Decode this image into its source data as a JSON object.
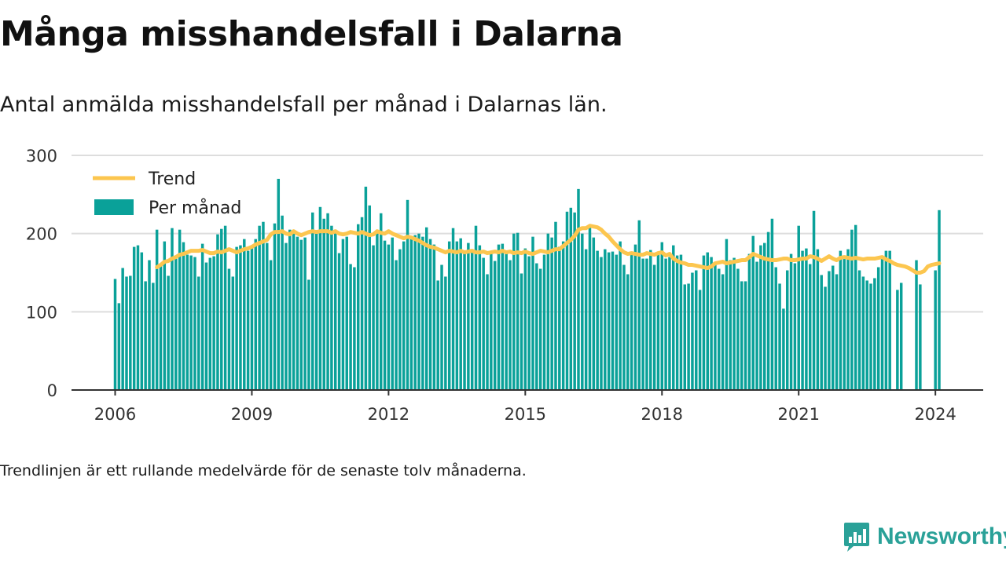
{
  "header": {
    "title": "Många misshandelsfall i Dalarna",
    "subtitle": "Antal anmälda misshandelsfall per månad i Dalarnas län."
  },
  "footer": {
    "note": "Trendlinjen är ett rullande medelvärde för de senaste tolv månaderna."
  },
  "logo": {
    "name": "Newsworthy",
    "icon": "newsworthy-chart-icon"
  },
  "colors": {
    "bar": "#0aa199",
    "trend": "#fcc64f",
    "grid": "#dddddd",
    "axis": "#333333"
  },
  "chart_data": {
    "type": "bar",
    "title": "Många misshandelsfall i Dalarna",
    "subtitle": "Antal anmälda misshandelsfall per månad i Dalarnas län.",
    "xlabel": "",
    "ylabel": "",
    "ylim": [
      0,
      300
    ],
    "yticks": [
      0,
      100,
      200,
      300
    ],
    "xticks": [
      "2006",
      "2009",
      "2012",
      "2015",
      "2018",
      "2021",
      "2024"
    ],
    "start": "2006-01",
    "grid": true,
    "legend_position": "top-left",
    "series": [
      {
        "name": "Per månad",
        "type": "bar",
        "values": [
          142,
          111,
          156,
          145,
          146,
          183,
          185,
          176,
          139,
          166,
          137,
          205,
          161,
          190,
          146,
          207,
          168,
          205,
          189,
          173,
          172,
          170,
          145,
          187,
          163,
          169,
          171,
          199,
          206,
          210,
          155,
          145,
          183,
          185,
          193,
          178,
          183,
          193,
          210,
          215,
          188,
          166,
          213,
          270,
          223,
          188,
          205,
          200,
          196,
          192,
          195,
          141,
          227,
          200,
          234,
          219,
          226,
          210,
          205,
          175,
          193,
          196,
          161,
          157,
          212,
          221,
          260,
          236,
          185,
          200,
          226,
          191,
          186,
          195,
          166,
          180,
          190,
          243,
          197,
          198,
          200,
          196,
          208,
          193,
          186,
          140,
          160,
          145,
          190,
          207,
          190,
          194,
          176,
          188,
          176,
          210,
          185,
          169,
          148,
          178,
          165,
          186,
          187,
          176,
          166,
          200,
          201,
          149,
          181,
          171,
          196,
          162,
          155,
          173,
          200,
          195,
          215,
          183,
          190,
          228,
          233,
          227,
          257,
          200,
          180,
          209,
          195,
          178,
          170,
          180,
          176,
          177,
          173,
          190,
          160,
          148,
          175,
          186,
          217,
          168,
          168,
          179,
          160,
          175,
          189,
          168,
          170,
          185,
          172,
          173,
          135,
          136,
          150,
          153,
          128,
          172,
          176,
          170,
          160,
          155,
          148,
          193,
          166,
          169,
          155,
          139,
          139,
          174,
          197,
          164,
          185,
          188,
          202,
          219,
          157,
          136,
          104,
          153,
          174,
          162,
          210,
          178,
          181,
          161,
          229,
          180,
          147,
          132,
          152,
          159,
          148,
          178,
          170,
          180,
          205,
          211,
          153,
          145,
          140,
          136,
          143,
          157,
          168,
          178,
          178,
          null,
          128,
          137,
          null,
          null,
          null,
          166,
          135,
          null,
          null,
          null,
          153,
          230
        ]
      },
      {
        "name": "Trend",
        "type": "line",
        "values": [
          null,
          null,
          null,
          null,
          null,
          null,
          null,
          null,
          null,
          null,
          null,
          157,
          160,
          164,
          165,
          168,
          170,
          173,
          174,
          176,
          178,
          178,
          178,
          179,
          177,
          175,
          175,
          177,
          176,
          178,
          180,
          178,
          176,
          178,
          180,
          181,
          183,
          186,
          188,
          190,
          192,
          199,
          202,
          202,
          203,
          200,
          199,
          203,
          200,
          198,
          200,
          202,
          203,
          202,
          203,
          203,
          203,
          201,
          203,
          200,
          199,
          200,
          202,
          201,
          200,
          202,
          200,
          198,
          199,
          203,
          201,
          200,
          203,
          200,
          198,
          196,
          194,
          196,
          195,
          193,
          191,
          188,
          185,
          183,
          182,
          180,
          178,
          176,
          178,
          177,
          176,
          178,
          176,
          177,
          178,
          176,
          176,
          177,
          175,
          176,
          177,
          176,
          178,
          176,
          177,
          175,
          176,
          175,
          177,
          175,
          174,
          176,
          178,
          177,
          176,
          178,
          180,
          180,
          184,
          188,
          192,
          197,
          205,
          207,
          207,
          210,
          209,
          208,
          205,
          200,
          196,
          190,
          185,
          180,
          176,
          174,
          175,
          174,
          173,
          173,
          175,
          174,
          173,
          175,
          176,
          172,
          174,
          168,
          165,
          163,
          162,
          160,
          160,
          159,
          158,
          157,
          156,
          158,
          162,
          163,
          164,
          162,
          163,
          164,
          165,
          166,
          166,
          170,
          174,
          172,
          170,
          168,
          167,
          166,
          166,
          167,
          168,
          168,
          166,
          166,
          167,
          168,
          168,
          171,
          170,
          168,
          165,
          168,
          171,
          168,
          166,
          169,
          170,
          169,
          168,
          169,
          168,
          167,
          168,
          168,
          168,
          169,
          170,
          167,
          165,
          162,
          160,
          159,
          158,
          156,
          153,
          150,
          150,
          152,
          158,
          160,
          161,
          162
        ]
      }
    ]
  }
}
